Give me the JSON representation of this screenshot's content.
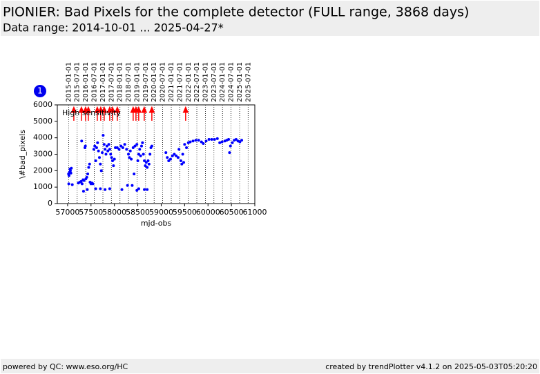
{
  "chart_data": {
    "type": "scatter",
    "title": "PIONIER: Bad Pixels for the complete detector (FULL range, 3868 days)",
    "subtitle": "Data range: 2014-10-01 ... 2025-04-27*",
    "x_label": "mjd-obs",
    "y_label": "\\#bad_pixels",
    "annotation": "High sensitivity",
    "color": "#0000ff",
    "event_color": "#ff0000",
    "xlim": [
      56780,
      61000
    ],
    "ylim": [
      0,
      6000
    ],
    "xticks": [
      57000,
      57500,
      58000,
      58500,
      59000,
      59500,
      60000,
      60500,
      61000
    ],
    "yticks": [
      0,
      1000,
      2000,
      3000,
      4000,
      5000,
      6000
    ],
    "x2ticks": [
      {
        "value": 57023,
        "label": "2015-01-01"
      },
      {
        "value": 57204,
        "label": "2015-07-01"
      },
      {
        "value": 57388,
        "label": "2016-01-01"
      },
      {
        "value": 57570,
        "label": "2016-07-01"
      },
      {
        "value": 57754,
        "label": "2017-01-01"
      },
      {
        "value": 57935,
        "label": "2017-07-01"
      },
      {
        "value": 58119,
        "label": "2018-01-01"
      },
      {
        "value": 58300,
        "label": "2018-07-01"
      },
      {
        "value": 58484,
        "label": "2019-01-01"
      },
      {
        "value": 58665,
        "label": "2019-07-01"
      },
      {
        "value": 58849,
        "label": "2020-01-01"
      },
      {
        "value": 59031,
        "label": "2020-07-01"
      },
      {
        "value": 59215,
        "label": "2021-01-01"
      },
      {
        "value": 59396,
        "label": "2021-07-01"
      },
      {
        "value": 59580,
        "label": "2022-01-01"
      },
      {
        "value": 59761,
        "label": "2022-07-01"
      },
      {
        "value": 59945,
        "label": "2023-01-01"
      },
      {
        "value": 60126,
        "label": "2023-07-01"
      },
      {
        "value": 60310,
        "label": "2024-01-01"
      },
      {
        "value": 60492,
        "label": "2024-07-01"
      },
      {
        "value": 60676,
        "label": "2025-01-01"
      },
      {
        "value": 60857,
        "label": "2025-07-01"
      }
    ],
    "event_x": [
      57133,
      57295,
      57384,
      57443,
      57634,
      57708,
      57782,
      57900,
      57959,
      58062,
      58401,
      58460,
      58519,
      58637,
      58800,
      59522
    ],
    "x": [
      57020,
      57030,
      57040,
      57050,
      57060,
      57070,
      57080,
      57025,
      57100,
      57230,
      57260,
      57290,
      57310,
      57330,
      57350,
      57300,
      57380,
      57370,
      57390,
      57410,
      57430,
      57450,
      57470,
      57480,
      57500,
      57520,
      57540,
      57420,
      57340,
      57560,
      57580,
      57600,
      57620,
      57640,
      57660,
      57680,
      57700,
      57720,
      57740,
      57760,
      57780,
      57800,
      57820,
      57840,
      57860,
      57880,
      57900,
      57920,
      57940,
      57960,
      57980,
      58000,
      58020,
      57600,
      57700,
      57800,
      57900,
      58060,
      58100,
      58140,
      58180,
      58220,
      58260,
      58160,
      58280,
      58380,
      58300,
      58320,
      58340,
      58360,
      58400,
      58440,
      58420,
      58480,
      58500,
      58520,
      58540,
      58560,
      58580,
      58600,
      58480,
      58520,
      58620,
      58640,
      58660,
      58680,
      58700,
      58720,
      58740,
      58760,
      58780,
      58800,
      58640,
      58700,
      59100,
      59130,
      59160,
      59200,
      59240,
      59280,
      59320,
      59360,
      59380,
      59420,
      59440,
      59460,
      59480,
      59500,
      59540,
      59580,
      59620,
      59680,
      59740,
      59800,
      59860,
      59900,
      59960,
      60020,
      60080,
      60140,
      60200,
      60250,
      60300,
      60360,
      60400,
      60440,
      60460,
      60480,
      60520,
      60560,
      60600,
      60640,
      60680,
      60720
    ],
    "values": [
      1800,
      1700,
      1900,
      2100,
      2000,
      1850,
      2150,
      1200,
      1150,
      1250,
      1300,
      1350,
      1200,
      1450,
      1400,
      3800,
      3500,
      3400,
      1500,
      1600,
      1800,
      2200,
      2400,
      1300,
      1200,
      1250,
      1200,
      850,
      750,
      3300,
      3500,
      2600,
      3400,
      3700,
      3200,
      2800,
      2400,
      2000,
      3100,
      4150,
      3600,
      3300,
      3000,
      3500,
      3200,
      3600,
      3300,
      3000,
      2800,
      2600,
      2300,
      2700,
      3400,
      900,
      900,
      850,
      900,
      3400,
      3300,
      3500,
      3400,
      3600,
      3300,
      850,
      1100,
      1100,
      3000,
      2800,
      3200,
      2700,
      3400,
      3500,
      1800,
      3600,
      2600,
      3000,
      3300,
      2900,
      3500,
      3700,
      800,
      900,
      3000,
      2600,
      2300,
      2500,
      2200,
      2600,
      2400,
      3000,
      3400,
      3500,
      850,
      850,
      3100,
      2800,
      2600,
      2700,
      2900,
      3000,
      2900,
      2800,
      3300,
      2600,
      2400,
      3000,
      2500,
      3600,
      3400,
      3700,
      3750,
      3800,
      3850,
      3850,
      3750,
      3650,
      3800,
      3900,
      3900,
      3900,
      3950,
      3700,
      3750,
      3800,
      3850,
      3900,
      3100,
      3500,
      3700,
      3850,
      3900,
      3800,
      3750,
      3850
    ]
  },
  "badge": "1",
  "footer": {
    "left": "powered by QC: www.eso.org/HC",
    "right": "created by trendPlotter v4.1.2 on 2025-05-03T05:20:20"
  }
}
